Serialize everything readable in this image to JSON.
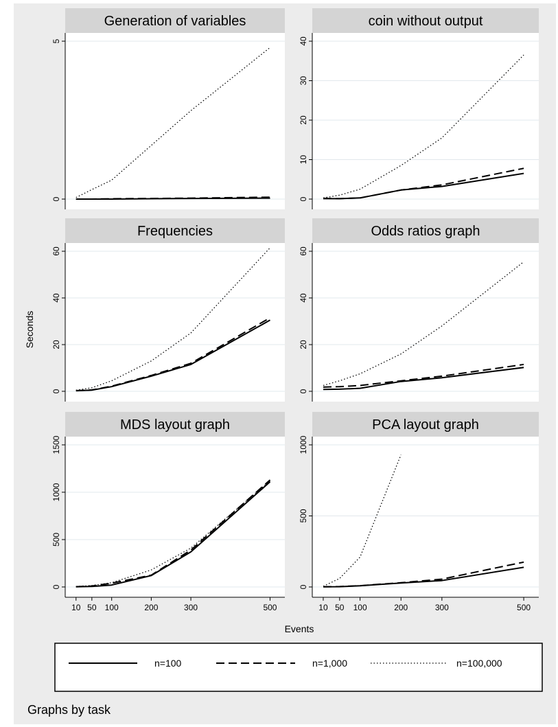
{
  "chart_data": {
    "type": "line",
    "xlabel": "Events",
    "ylabel": "Seconds",
    "note": "Graphs by task",
    "legend_position": "bottom",
    "x_ticks": [
      10,
      50,
      100,
      200,
      300,
      500
    ],
    "x": [
      10,
      50,
      100,
      200,
      300,
      500
    ],
    "legend": [
      {
        "name": "n=100",
        "style": "solid"
      },
      {
        "name": "n=1,000",
        "style": "dashed"
      },
      {
        "name": "n=100,000",
        "style": "dotted"
      }
    ],
    "panels": [
      {
        "title": "Generation of variables",
        "ylim": [
          0,
          5
        ],
        "yticks": [
          "0",
          "5"
        ],
        "series": [
          {
            "name": "n=100",
            "values": [
              0.0,
              0.0,
              0.0,
              0.01,
              0.02,
              0.03
            ]
          },
          {
            "name": "n=1,000",
            "values": [
              0.0,
              0.0,
              0.01,
              0.02,
              0.03,
              0.06
            ]
          },
          {
            "name": "n=100,000",
            "values": [
              0.05,
              0.3,
              0.6,
              1.7,
              2.8,
              4.8
            ]
          }
        ]
      },
      {
        "title": "coin without output",
        "ylim": [
          0,
          40
        ],
        "yticks": [
          "0",
          "10",
          "20",
          "30",
          "40"
        ],
        "series": [
          {
            "name": "n=100",
            "values": [
              0.1,
              0.1,
              0.3,
              2.3,
              3.2,
              6.5
            ]
          },
          {
            "name": "n=1,000",
            "values": [
              0.2,
              0.1,
              0.3,
              2.3,
              3.6,
              7.8
            ]
          },
          {
            "name": "n=100,000",
            "values": [
              0.3,
              1.0,
              2.5,
              8.5,
              15.5,
              36.5
            ]
          }
        ]
      },
      {
        "title": "Frequencies",
        "ylim": [
          0,
          60
        ],
        "yticks": [
          "0",
          "20",
          "40",
          "60"
        ],
        "series": [
          {
            "name": "n=100",
            "values": [
              0.2,
              0.5,
              2.0,
              6.5,
              11.5,
              30.5
            ]
          },
          {
            "name": "n=1,000",
            "values": [
              0.3,
              0.6,
              2.2,
              6.8,
              12.0,
              31.5
            ]
          },
          {
            "name": "n=100,000",
            "values": [
              0.5,
              1.5,
              4.5,
              13.0,
              25.0,
              61.5
            ]
          }
        ]
      },
      {
        "title": "Odds ratios graph",
        "ylim": [
          0,
          60
        ],
        "yticks": [
          "0",
          "20",
          "40",
          "60"
        ],
        "series": [
          {
            "name": "n=100",
            "values": [
              0.8,
              0.9,
              1.3,
              4.2,
              5.8,
              10.2
            ]
          },
          {
            "name": "n=1,000",
            "values": [
              1.8,
              2.0,
              2.5,
              4.5,
              6.5,
              11.5
            ]
          },
          {
            "name": "n=100,000",
            "values": [
              2.5,
              4.5,
              7.5,
              16.0,
              28.0,
              55.5
            ]
          }
        ]
      },
      {
        "title": "MDS layout graph",
        "ylim": [
          0,
          1500
        ],
        "yticks": [
          "0",
          "500",
          "1000",
          "1500"
        ],
        "series": [
          {
            "name": "n=100",
            "values": [
              2,
              5,
              20,
              120,
              370,
              1110
            ]
          },
          {
            "name": "n=1,000",
            "values": [
              3,
              10,
              40,
              125,
              390,
              1130
            ]
          },
          {
            "name": "n=100,000",
            "values": [
              5,
              15,
              45,
              180,
              410,
              1120
            ]
          }
        ]
      },
      {
        "title": "PCA layout graph",
        "ylim": [
          0,
          1000
        ],
        "yticks": [
          "0",
          "500",
          "1000"
        ],
        "x_max_dotted": 200,
        "series": [
          {
            "name": "n=100",
            "values": [
              1,
              2,
              8,
              28,
              45,
              138
            ]
          },
          {
            "name": "n=1,000",
            "values": [
              1,
              3,
              9,
              30,
              55,
              175
            ]
          },
          {
            "name": "n=100,000",
            "values": [
              5,
              60,
              210,
              930,
              null,
              null
            ]
          }
        ]
      }
    ]
  }
}
